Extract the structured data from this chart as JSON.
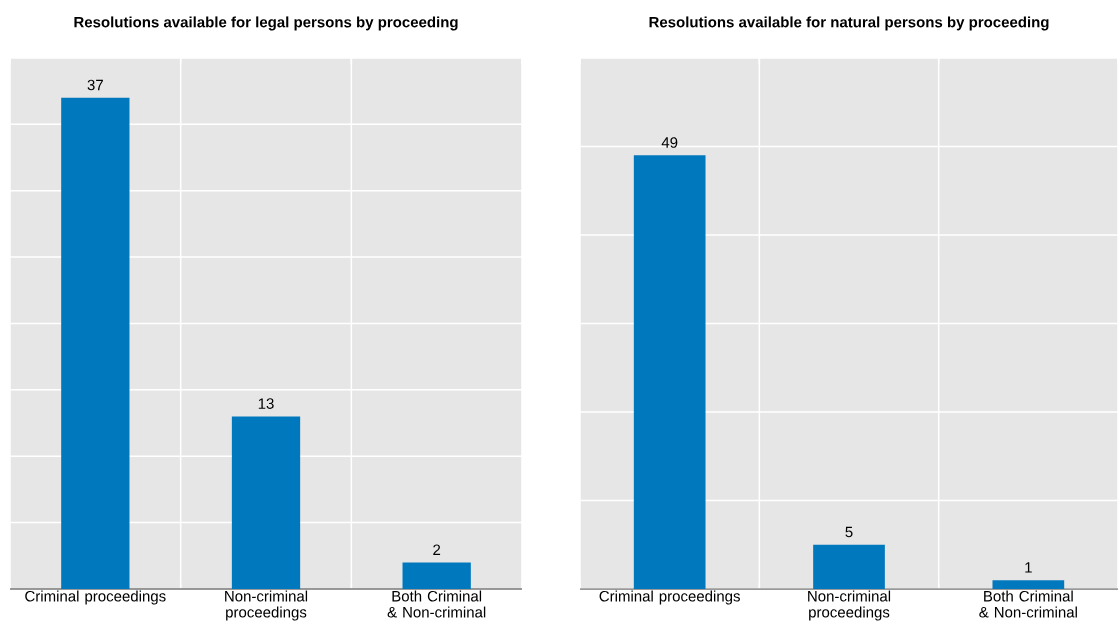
{
  "chart_data": [
    {
      "type": "bar",
      "title": "Resolutions available for legal persons by proceeding",
      "categories": [
        "Criminal proceedings",
        "Non-criminal proceedings",
        "Both Criminal & Non-criminal"
      ],
      "values": [
        37,
        13,
        2
      ],
      "color": "#0078be",
      "data_labels": true,
      "ylim": [
        0,
        40
      ],
      "yticks": [
        {
          "value": 0,
          "label": null
        },
        {
          "value": 5,
          "label": null
        },
        {
          "value": 10,
          "label": null
        },
        {
          "value": 15,
          "label": null
        },
        {
          "value": 20,
          "label": null
        },
        {
          "value": 25,
          "label": null
        },
        {
          "value": 30,
          "label": null
        },
        {
          "value": 35,
          "label": null
        },
        {
          "value": 40,
          "label": null
        }
      ],
      "tick_labels": "x",
      "grid": true
    },
    {
      "type": "bar",
      "title": "Resolutions available for natural persons by proceeding",
      "categories": [
        "Criminal proceedings",
        "Non-criminal proceedings",
        "Both Criminal & Non-criminal"
      ],
      "values": [
        49,
        5,
        1
      ],
      "color": "#0078be",
      "data_labels": true,
      "ylim": [
        0,
        60
      ],
      "yticks": [
        {
          "value": 0,
          "label": null
        },
        {
          "value": 10,
          "label": null
        },
        {
          "value": 20,
          "label": null
        },
        {
          "value": 30,
          "label": null
        },
        {
          "value": 40,
          "label": null
        },
        {
          "value": 50,
          "label": null
        },
        {
          "value": 60,
          "label": null
        }
      ],
      "tick_labels": "x",
      "grid": true
    }
  ]
}
